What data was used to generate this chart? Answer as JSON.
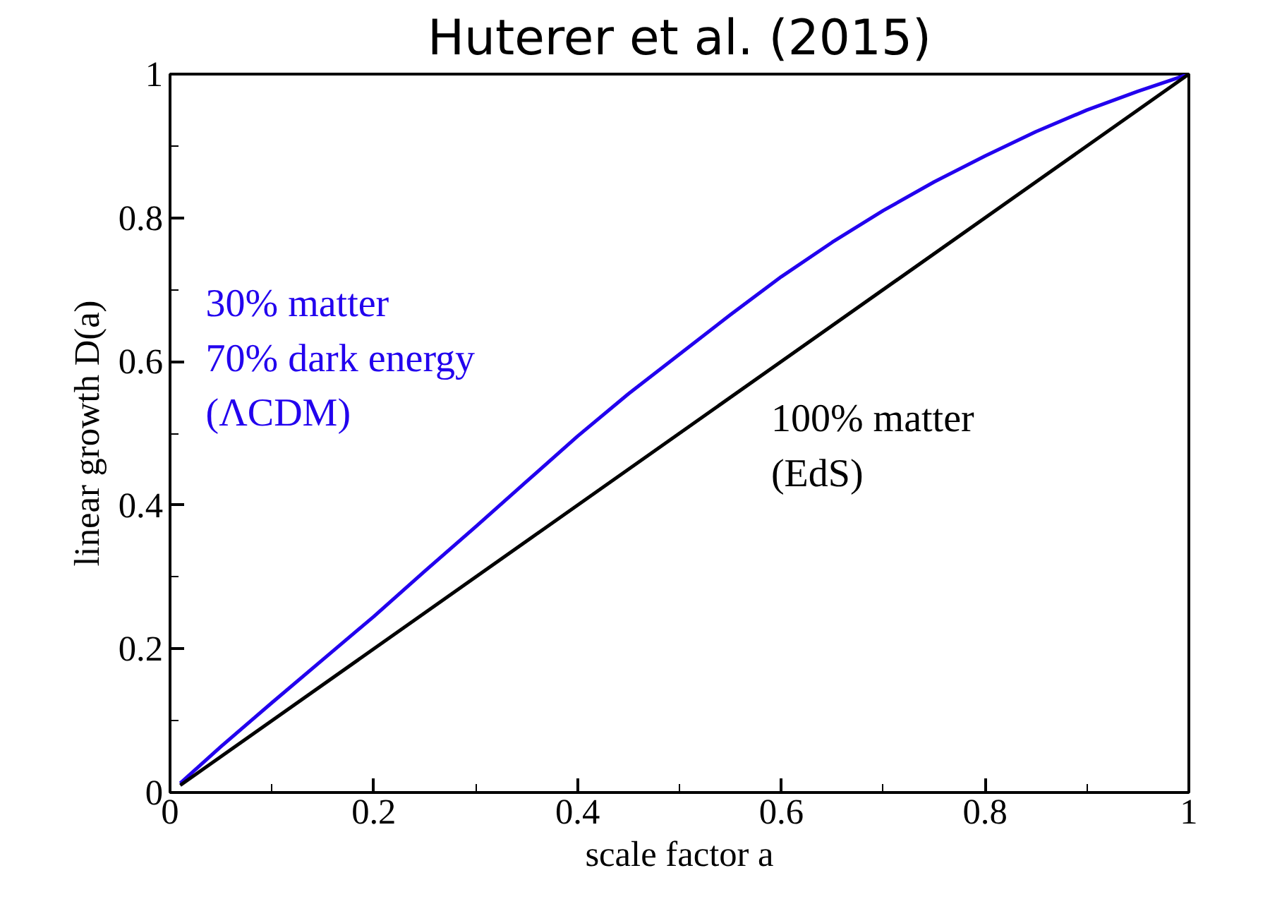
{
  "chart_data": {
    "type": "line",
    "title": "Huterer et al. (2015)",
    "xlabel": "scale factor a",
    "ylabel": "linear growth D(a)",
    "xlim": [
      0,
      1
    ],
    "ylim": [
      0,
      1
    ],
    "xticks": [
      0,
      0.2,
      0.4,
      0.6,
      0.8,
      1
    ],
    "yticks": [
      0,
      0.2,
      0.4,
      0.6,
      0.8,
      1
    ],
    "grid": false,
    "line_style": "solid",
    "series": [
      {
        "color": "#2200ee",
        "x": [
          0.01,
          0.05,
          0.1,
          0.15,
          0.2,
          0.25,
          0.3,
          0.35,
          0.4,
          0.45,
          0.5,
          0.55,
          0.6,
          0.65,
          0.7,
          0.75,
          0.8,
          0.85,
          0.9,
          0.95,
          1.0
        ],
        "values": [
          0.013,
          0.064,
          0.125,
          0.185,
          0.245,
          0.308,
          0.37,
          0.433,
          0.496,
          0.555,
          0.61,
          0.665,
          0.718,
          0.766,
          0.81,
          0.85,
          0.886,
          0.92,
          0.95,
          0.976,
          1.0
        ]
      },
      {
        "color": "#000000",
        "x": [
          0.01,
          1.0
        ],
        "values": [
          0.01,
          1.0
        ]
      }
    ],
    "annotations": [
      "30% matter\n70% dark energy\n(ΛCDM)",
      "100% matter\n (EdS)"
    ]
  }
}
